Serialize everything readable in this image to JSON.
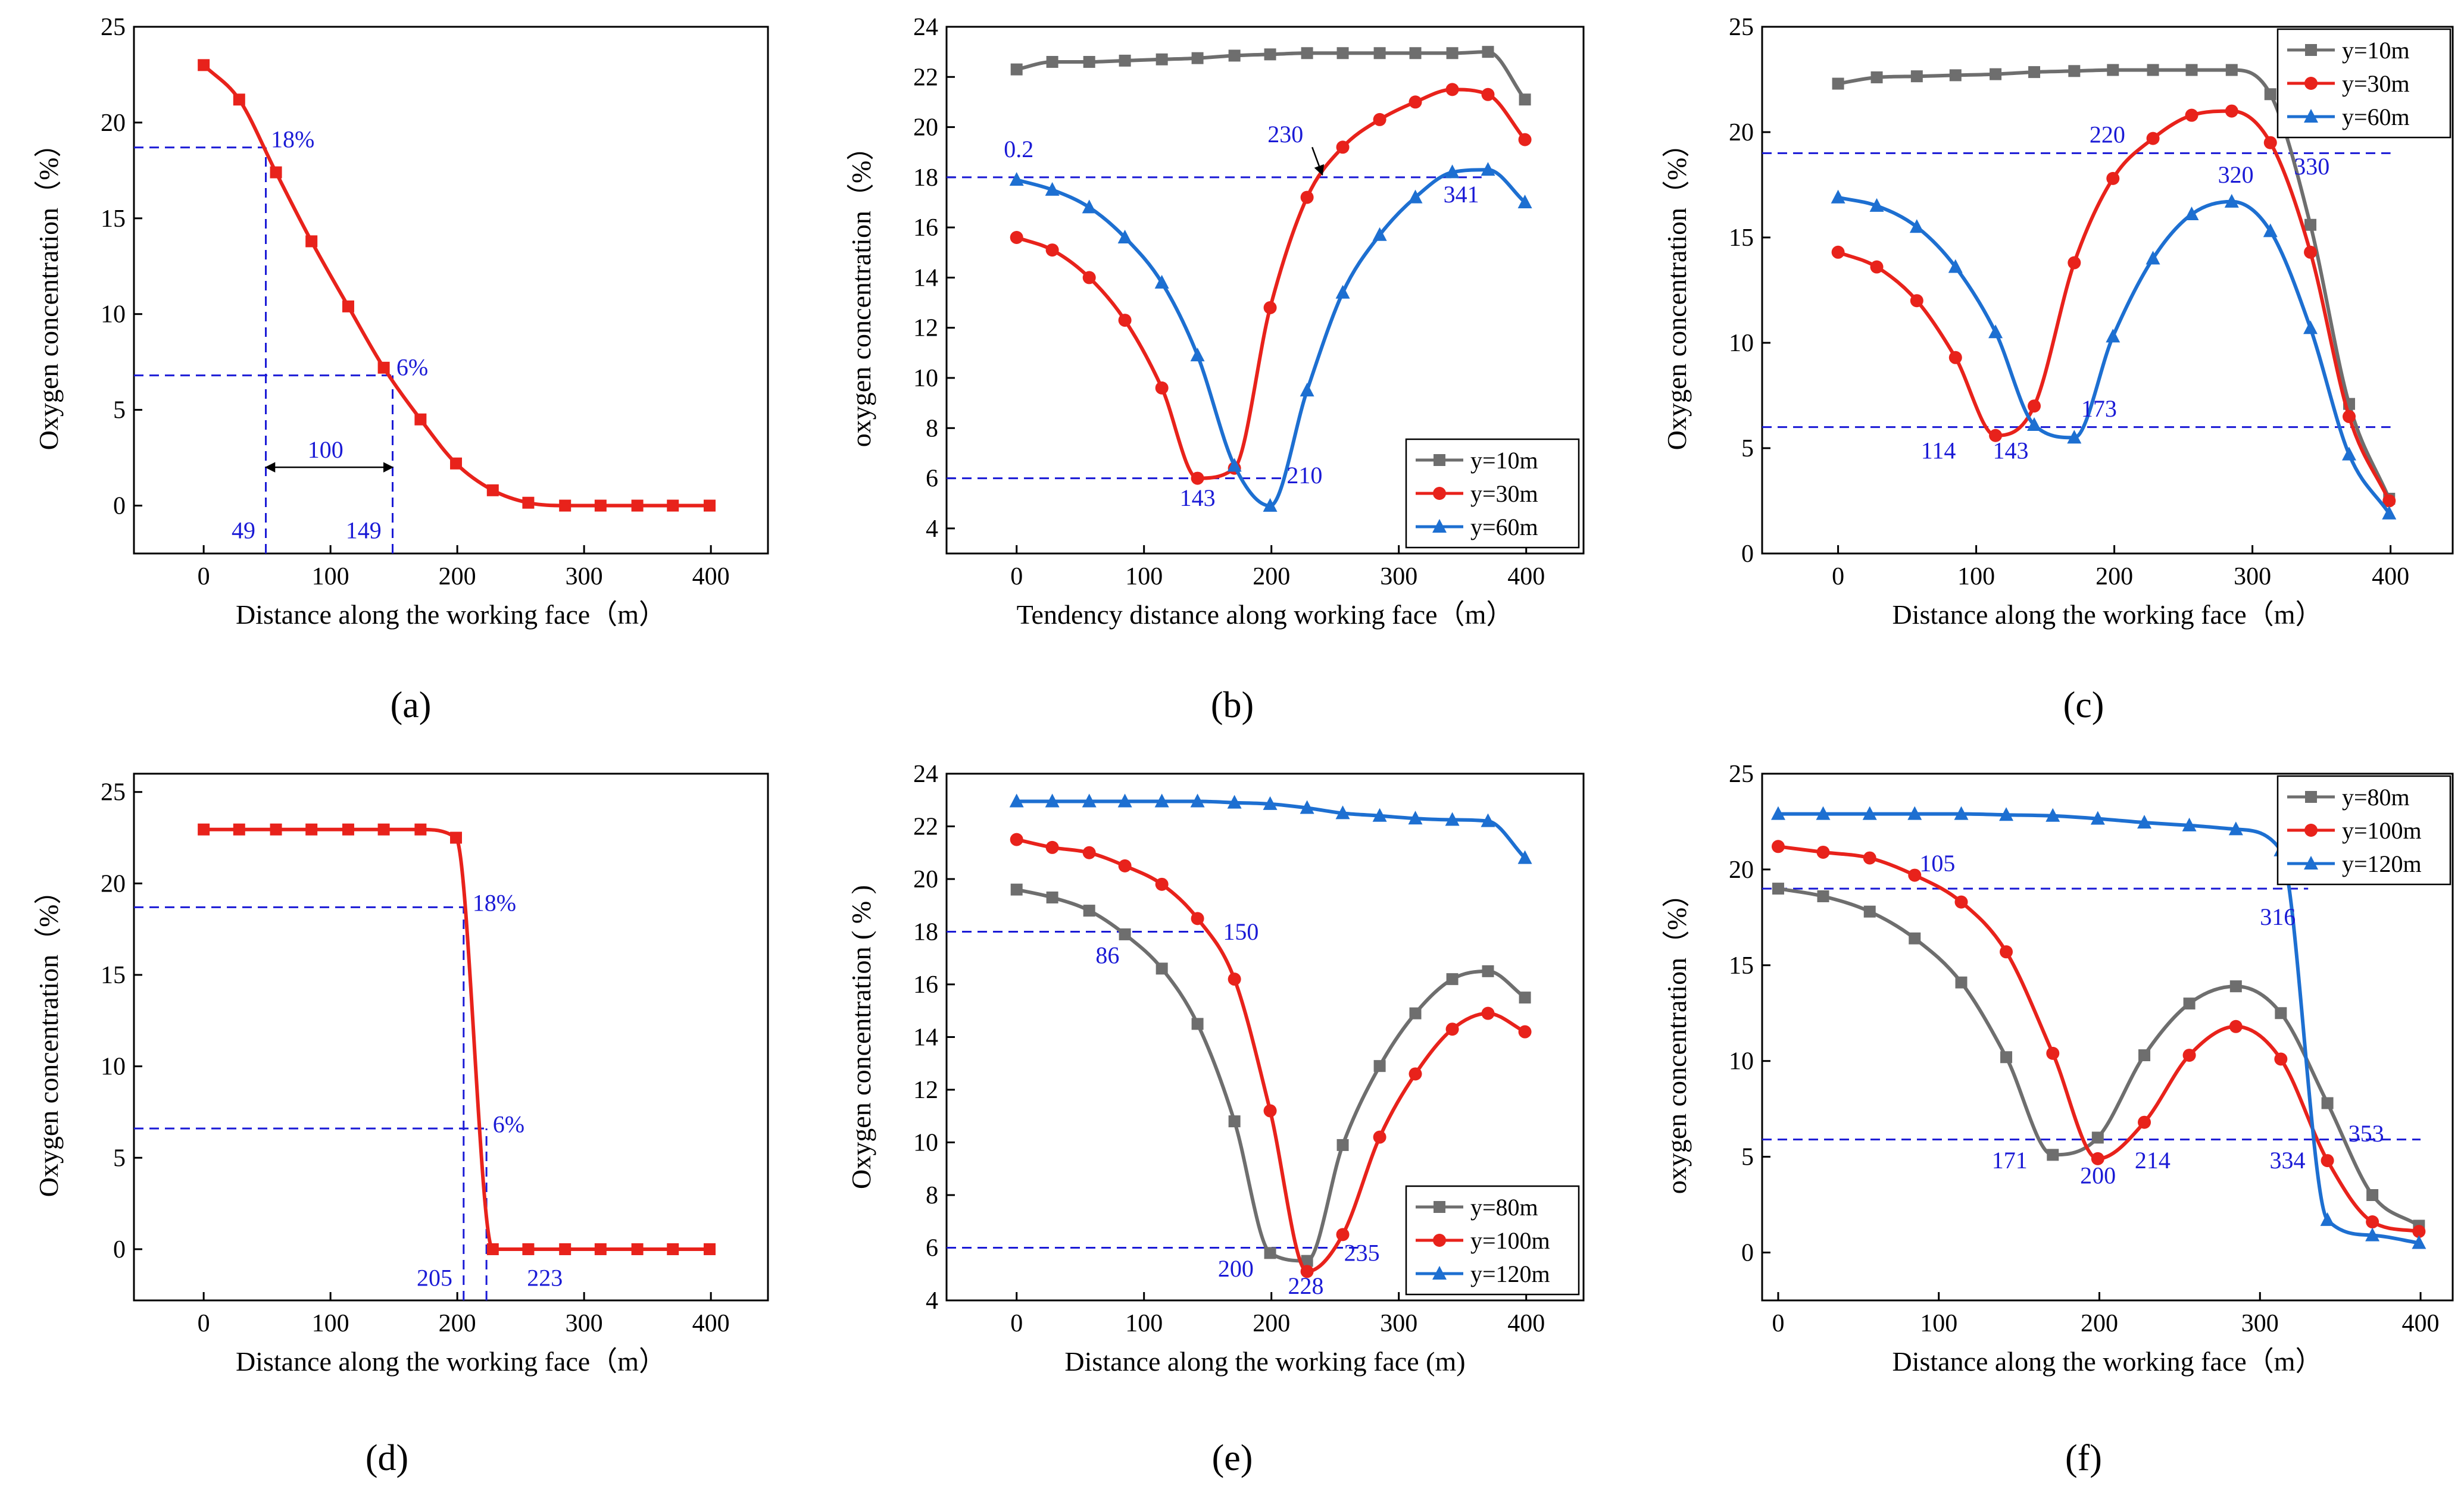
{
  "colors": {
    "red": "#e8221b",
    "gray": "#6e6e6e",
    "blue": "#1d6fd1",
    "guide": "#1a1ad6"
  },
  "chart_data": [
    {
      "panel": "(a)",
      "type": "line",
      "xlabel": "Distance along the working face（m）",
      "ylabel": "Oxygen concentration（%）",
      "xlim": [
        -55,
        445
      ],
      "ylim": [
        -2.5,
        25
      ],
      "xticks": [
        0,
        100,
        200,
        300,
        400
      ],
      "yticks": [
        0,
        5,
        10,
        15,
        20,
        25
      ],
      "series": [
        {
          "name": "",
          "color": "red",
          "marker": "square",
          "x": [
            0,
            28,
            57,
            85,
            114,
            142,
            171,
            199,
            228,
            256,
            285,
            313,
            342,
            370,
            399
          ],
          "y": [
            23.0,
            21.2,
            17.4,
            13.8,
            10.4,
            7.2,
            4.5,
            2.2,
            0.8,
            0.15,
            0.0,
            0.0,
            0.0,
            0.0,
            0.0
          ]
        }
      ],
      "guides": [
        {
          "kind": "h",
          "y": 18.7,
          "x_to": 49
        },
        {
          "kind": "h",
          "y": 6.8,
          "x_to": 149
        },
        {
          "kind": "v",
          "x": 49,
          "y_to": 18.7
        },
        {
          "kind": "v",
          "x": 149,
          "y_to": 6.8
        }
      ],
      "arrows": [
        {
          "x1": 49,
          "x2": 149,
          "y": 2.0,
          "double": true
        }
      ],
      "annotations": [
        {
          "text": "18%",
          "x": 53,
          "y": 18.7
        },
        {
          "text": "6%",
          "x": 152,
          "y": 6.8
        },
        {
          "text": "100",
          "x": 82,
          "y": 2.5
        },
        {
          "text": "49",
          "x": 22,
          "y": -1.7
        },
        {
          "text": "149",
          "x": 112,
          "y": -1.7
        }
      ]
    },
    {
      "panel": "(b)",
      "type": "line",
      "xlabel": "Tendency distance along working face（m）",
      "ylabel": "oxygen concentration（%）",
      "xlim": [
        -55,
        445
      ],
      "ylim": [
        3,
        24
      ],
      "xticks": [
        0,
        100,
        200,
        300,
        400
      ],
      "yticks": [
        4,
        6,
        8,
        10,
        12,
        14,
        16,
        18,
        20,
        22,
        24
      ],
      "legend": {
        "position": "bottom-right"
      },
      "series": [
        {
          "name": "y=10m",
          "color": "gray",
          "marker": "square",
          "x": [
            0,
            28,
            57,
            85,
            114,
            142,
            171,
            199,
            228,
            256,
            285,
            313,
            342,
            370,
            399
          ],
          "y": [
            22.3,
            22.6,
            22.6,
            22.65,
            22.7,
            22.75,
            22.85,
            22.9,
            22.95,
            22.95,
            22.95,
            22.95,
            22.95,
            23.0,
            21.1
          ]
        },
        {
          "name": "y=30m",
          "color": "red",
          "marker": "circle",
          "x": [
            0,
            28,
            57,
            85,
            114,
            142,
            171,
            199,
            228,
            256,
            285,
            313,
            342,
            370,
            399
          ],
          "y": [
            15.6,
            15.1,
            14.0,
            12.3,
            9.6,
            6.0,
            6.4,
            12.8,
            17.2,
            19.2,
            20.3,
            21.0,
            21.5,
            21.3,
            19.5
          ]
        },
        {
          "name": "y=60m",
          "color": "blue",
          "marker": "triangle",
          "x": [
            0,
            28,
            57,
            85,
            114,
            142,
            171,
            199,
            228,
            256,
            285,
            313,
            342,
            370,
            399
          ],
          "y": [
            17.9,
            17.5,
            16.8,
            15.6,
            13.8,
            10.9,
            6.5,
            4.9,
            9.5,
            13.4,
            15.7,
            17.2,
            18.2,
            18.3,
            17.0
          ]
        }
      ],
      "guides": [
        {
          "kind": "h",
          "y": 18.0,
          "x_to": 365
        },
        {
          "kind": "h",
          "y": 6.0,
          "x_to": 210
        }
      ],
      "arrows": [
        {
          "x1": 232,
          "y1": 19.2,
          "x2": 240,
          "y2": 18.1,
          "double": false
        }
      ],
      "annotations": [
        {
          "text": "0.2",
          "x": -10,
          "y": 18.8
        },
        {
          "text": "230",
          "x": 197,
          "y": 19.4
        },
        {
          "text": "341",
          "x": 335,
          "y": 17.0
        },
        {
          "text": "143",
          "x": 128,
          "y": 4.9
        },
        {
          "text": "210",
          "x": 212,
          "y": 5.8
        }
      ]
    },
    {
      "panel": "(c)",
      "type": "line",
      "xlabel": "Distance along the working face（m）",
      "ylabel": "Oxygen concentration（%）",
      "xlim": [
        -55,
        445
      ],
      "ylim": [
        0,
        25
      ],
      "xticks": [
        0,
        100,
        200,
        300,
        400
      ],
      "yticks": [
        0,
        5,
        10,
        15,
        20,
        25
      ],
      "legend": {
        "position": "top-right"
      },
      "series": [
        {
          "name": "y=10m",
          "color": "gray",
          "marker": "square",
          "x": [
            0,
            28,
            57,
            85,
            114,
            142,
            171,
            199,
            228,
            256,
            285,
            313,
            342,
            370,
            399
          ],
          "y": [
            22.3,
            22.6,
            22.65,
            22.7,
            22.75,
            22.85,
            22.9,
            22.95,
            22.95,
            22.95,
            22.95,
            21.8,
            15.6,
            7.1,
            2.6
          ]
        },
        {
          "name": "y=30m",
          "color": "red",
          "marker": "circle",
          "x": [
            0,
            28,
            57,
            85,
            114,
            142,
            171,
            199,
            228,
            256,
            285,
            313,
            342,
            370,
            399
          ],
          "y": [
            14.3,
            13.6,
            12.0,
            9.3,
            5.6,
            7.0,
            13.8,
            17.8,
            19.7,
            20.8,
            21.0,
            19.5,
            14.3,
            6.5,
            2.5
          ]
        },
        {
          "name": "y=60m",
          "color": "blue",
          "marker": "triangle",
          "x": [
            0,
            28,
            57,
            85,
            114,
            142,
            171,
            199,
            228,
            256,
            285,
            313,
            342,
            370,
            399
          ],
          "y": [
            16.9,
            16.5,
            15.5,
            13.6,
            10.5,
            6.1,
            5.5,
            10.3,
            14.0,
            16.1,
            16.7,
            15.3,
            10.7,
            4.7,
            1.9
          ]
        }
      ],
      "guides": [
        {
          "kind": "h",
          "y": 19.0,
          "x_to": 400
        },
        {
          "kind": "h",
          "y": 6.0,
          "x_to": 400
        }
      ],
      "annotations": [
        {
          "text": "220",
          "x": 182,
          "y": 19.5
        },
        {
          "text": "320",
          "x": 275,
          "y": 17.6
        },
        {
          "text": "330",
          "x": 330,
          "y": 18.0
        },
        {
          "text": "114",
          "x": 60,
          "y": 4.5
        },
        {
          "text": "143",
          "x": 112,
          "y": 4.5
        },
        {
          "text": "173",
          "x": 176,
          "y": 6.5
        }
      ]
    },
    {
      "panel": "(d)",
      "type": "line",
      "xlabel": "Distance along the working face（m）",
      "ylabel": "Oxygen concentration（%）",
      "xlim": [
        -55,
        445
      ],
      "ylim": [
        -2.8,
        26
      ],
      "xticks": [
        0,
        100,
        200,
        300,
        400
      ],
      "yticks": [
        0,
        5,
        10,
        15,
        20,
        25
      ],
      "series": [
        {
          "name": "",
          "color": "red",
          "marker": "square",
          "x": [
            0,
            28,
            57,
            85,
            114,
            142,
            171,
            199,
            228,
            256,
            285,
            313,
            342,
            370,
            399
          ],
          "y": [
            22.95,
            22.95,
            22.95,
            22.95,
            22.95,
            22.95,
            22.95,
            22.5,
            0.0,
            0.0,
            0.0,
            0.0,
            0.0,
            0.0,
            0.0
          ]
        }
      ],
      "guides": [
        {
          "kind": "h",
          "y": 18.7,
          "x_to": 205
        },
        {
          "kind": "h",
          "y": 6.6,
          "x_to": 223
        },
        {
          "kind": "v",
          "x": 205,
          "y_to": 18.7
        },
        {
          "kind": "v",
          "x": 223,
          "y_to": 6.6
        }
      ],
      "annotations": [
        {
          "text": "18%",
          "x": 212,
          "y": 18.5
        },
        {
          "text": "6%",
          "x": 228,
          "y": 6.4
        },
        {
          "text": "205",
          "x": 168,
          "y": -2.0
        },
        {
          "text": "223",
          "x": 255,
          "y": -2.0
        }
      ]
    },
    {
      "panel": "(e)",
      "type": "line",
      "xlabel": "Distance along the working face (m)",
      "ylabel": "Oxygen concentration ( % )",
      "xlim": [
        -55,
        445
      ],
      "ylim": [
        4,
        24
      ],
      "xticks": [
        0,
        100,
        200,
        300,
        400
      ],
      "yticks": [
        4,
        6,
        8,
        10,
        12,
        14,
        16,
        18,
        20,
        22,
        24
      ],
      "legend": {
        "position": "bottom-right"
      },
      "series": [
        {
          "name": "y=80m",
          "color": "gray",
          "marker": "square",
          "x": [
            0,
            28,
            57,
            85,
            114,
            142,
            171,
            199,
            228,
            256,
            285,
            313,
            342,
            370,
            399
          ],
          "y": [
            19.6,
            19.3,
            18.8,
            17.9,
            16.6,
            14.5,
            10.8,
            5.8,
            5.5,
            9.9,
            12.9,
            14.9,
            16.2,
            16.5,
            15.5
          ]
        },
        {
          "name": "y=100m",
          "color": "red",
          "marker": "circle",
          "x": [
            0,
            28,
            57,
            85,
            114,
            142,
            171,
            199,
            228,
            256,
            285,
            313,
            342,
            370,
            399
          ],
          "y": [
            21.5,
            21.2,
            21.0,
            20.5,
            19.8,
            18.5,
            16.2,
            11.2,
            5.1,
            6.5,
            10.2,
            12.6,
            14.3,
            14.9,
            14.2
          ]
        },
        {
          "name": "y=120m",
          "color": "blue",
          "marker": "triangle",
          "x": [
            0,
            28,
            57,
            85,
            114,
            142,
            171,
            199,
            228,
            256,
            285,
            313,
            342,
            370,
            399
          ],
          "y": [
            22.95,
            22.95,
            22.95,
            22.95,
            22.95,
            22.95,
            22.9,
            22.85,
            22.7,
            22.5,
            22.4,
            22.3,
            22.25,
            22.2,
            20.8
          ]
        }
      ],
      "guides": [
        {
          "kind": "h",
          "y": 18.0,
          "x_to": 150
        },
        {
          "kind": "h",
          "y": 6.0,
          "x_to": 268
        }
      ],
      "annotations": [
        {
          "text": "150",
          "x": 162,
          "y": 17.7
        },
        {
          "text": "86",
          "x": 62,
          "y": 16.8
        },
        {
          "text": "200",
          "x": 158,
          "y": 4.9
        },
        {
          "text": "228",
          "x": 213,
          "y": 4.25
        },
        {
          "text": "235",
          "x": 257,
          "y": 5.5
        }
      ]
    },
    {
      "panel": "(f)",
      "type": "line",
      "xlabel": "Distance along the working face（m）",
      "ylabel": "oxygen concentration（%）",
      "xlim": [
        -10,
        420
      ],
      "ylim": [
        -2.5,
        25
      ],
      "xticks": [
        0,
        100,
        200,
        300,
        400
      ],
      "yticks": [
        0,
        5,
        10,
        15,
        20,
        25
      ],
      "legend": {
        "position": "top-right"
      },
      "series": [
        {
          "name": "y=80m",
          "color": "gray",
          "marker": "square",
          "x": [
            0,
            28,
            57,
            85,
            114,
            142,
            171,
            199,
            228,
            256,
            285,
            313,
            342,
            370,
            399
          ],
          "y": [
            19.0,
            18.6,
            17.8,
            16.4,
            14.1,
            10.2,
            5.1,
            6.0,
            10.3,
            13.0,
            13.9,
            12.5,
            7.8,
            3.0,
            1.4
          ]
        },
        {
          "name": "y=100m",
          "color": "red",
          "marker": "circle",
          "x": [
            0,
            28,
            57,
            85,
            114,
            142,
            171,
            199,
            228,
            256,
            285,
            313,
            342,
            370,
            399
          ],
          "y": [
            21.2,
            20.9,
            20.6,
            19.7,
            18.3,
            15.7,
            10.4,
            4.9,
            6.8,
            10.3,
            11.8,
            10.1,
            4.8,
            1.6,
            1.1
          ]
        },
        {
          "name": "y=120m",
          "color": "blue",
          "marker": "triangle",
          "x": [
            0,
            28,
            57,
            85,
            114,
            142,
            171,
            199,
            228,
            256,
            285,
            313,
            342,
            370,
            399
          ],
          "y": [
            22.9,
            22.9,
            22.9,
            22.9,
            22.9,
            22.85,
            22.8,
            22.65,
            22.45,
            22.3,
            22.1,
            21.0,
            1.7,
            0.9,
            0.5
          ]
        }
      ],
      "guides": [
        {
          "kind": "h",
          "y": 19.0,
          "x_to": 330
        },
        {
          "kind": "h",
          "y": 5.9,
          "x_to": 400
        }
      ],
      "annotations": [
        {
          "text": "105",
          "x": 88,
          "y": 19.9
        },
        {
          "text": "316",
          "x": 300,
          "y": 17.1
        },
        {
          "text": "171",
          "x": 133,
          "y": 4.4
        },
        {
          "text": "200",
          "x": 188,
          "y": 3.6
        },
        {
          "text": "214",
          "x": 222,
          "y": 4.4
        },
        {
          "text": "334",
          "x": 306,
          "y": 4.4
        },
        {
          "text": "353",
          "x": 355,
          "y": 5.8
        }
      ]
    }
  ]
}
